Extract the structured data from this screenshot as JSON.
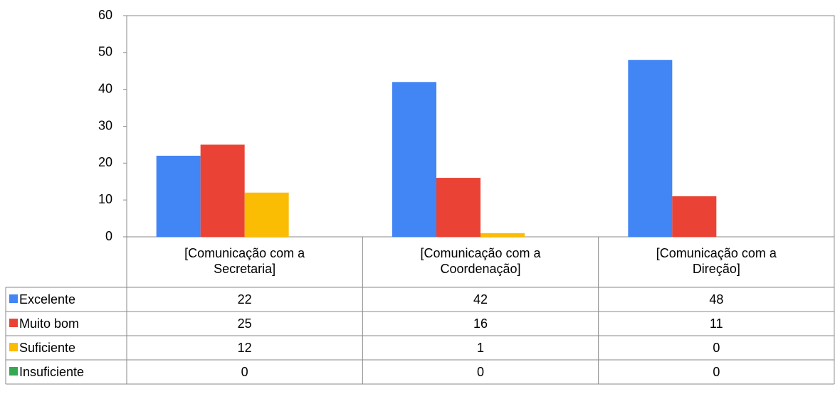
{
  "chart_data": {
    "type": "bar",
    "categories": [
      "[Comunicação com a Secretaria]",
      "[Comunicação com a Coordenação]",
      "[Comunicação com a Direção]"
    ],
    "series": [
      {
        "name": "Excelente",
        "color": "#4285f4",
        "values": [
          22,
          42,
          48
        ]
      },
      {
        "name": "Muito bom",
        "color": "#ea4335",
        "values": [
          25,
          16,
          11
        ]
      },
      {
        "name": "Suficiente",
        "color": "#fbbc04",
        "values": [
          12,
          1,
          0
        ]
      },
      {
        "name": "Insuficiente",
        "color": "#34a853",
        "values": [
          0,
          0,
          0
        ]
      }
    ],
    "ylim": [
      0,
      60
    ],
    "yticks": [
      0,
      10,
      20,
      30,
      40,
      50,
      60
    ]
  }
}
